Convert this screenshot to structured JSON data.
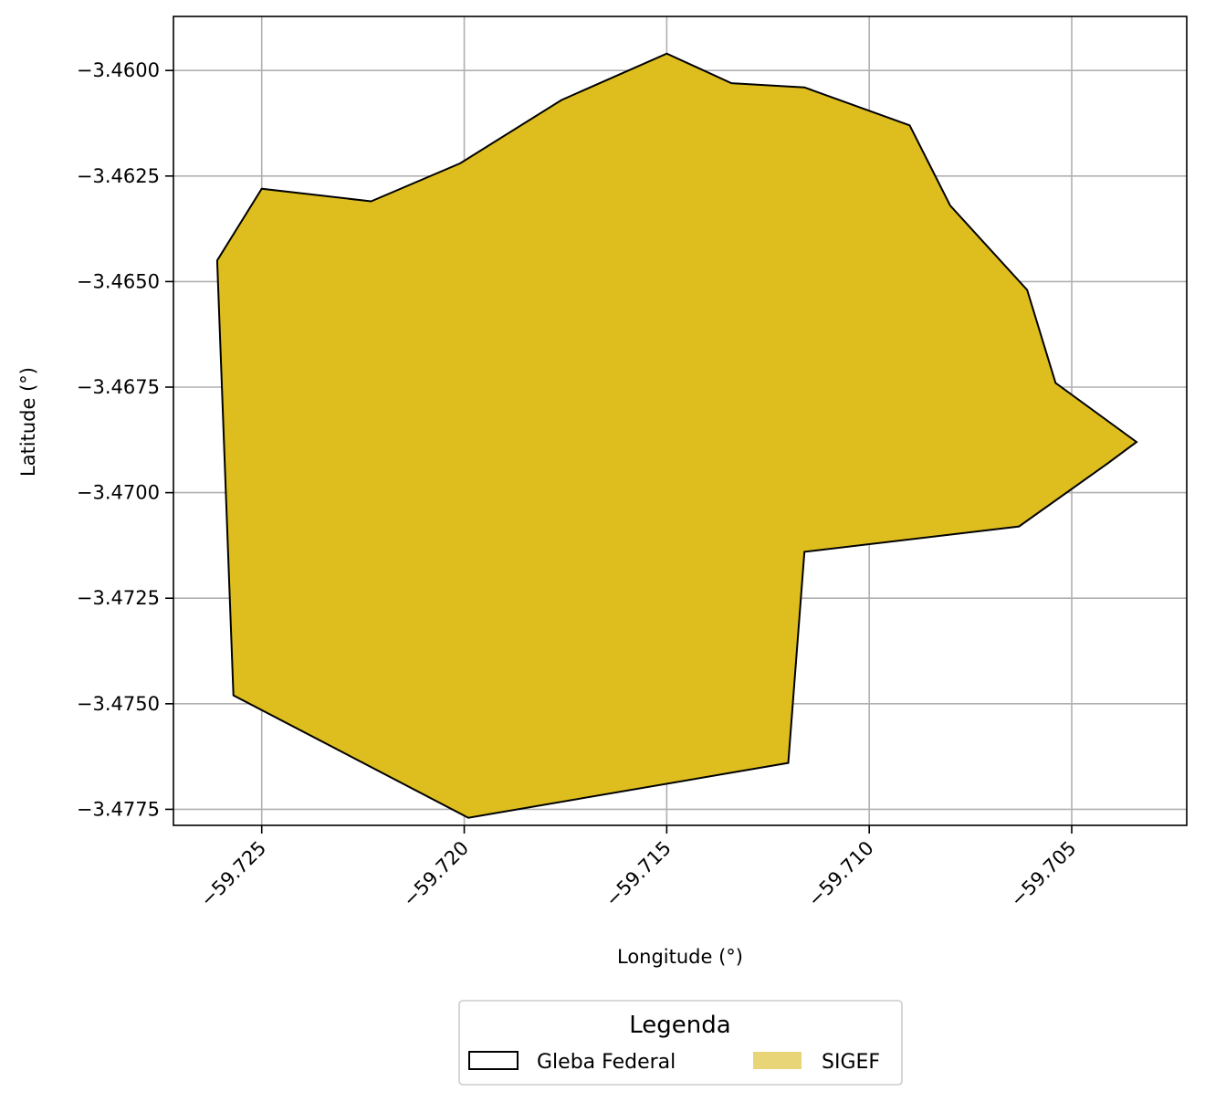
{
  "chart_data": {
    "type": "map",
    "xlabel": "Longitude (°)",
    "ylabel": "Latitude (°)",
    "xlim": [
      -59.72718,
      -59.70216
    ],
    "ylim": [
      -3.47788,
      -3.45872
    ],
    "grid": true,
    "xticks": [
      {
        "value": -59.725,
        "label": "−59.725"
      },
      {
        "value": -59.72,
        "label": "−59.720"
      },
      {
        "value": -59.715,
        "label": "−59.715"
      },
      {
        "value": -59.71,
        "label": "−59.710"
      },
      {
        "value": -59.705,
        "label": "−59.705"
      }
    ],
    "yticks": [
      {
        "value": -3.46,
        "label": "−3.4600"
      },
      {
        "value": -3.4625,
        "label": "−3.4625"
      },
      {
        "value": -3.465,
        "label": "−3.4650"
      },
      {
        "value": -3.4675,
        "label": "−3.4675"
      },
      {
        "value": -3.47,
        "label": "−3.4700"
      },
      {
        "value": -3.4725,
        "label": "−3.4725"
      },
      {
        "value": -3.475,
        "label": "−3.4750"
      },
      {
        "value": -3.4775,
        "label": "−3.4775"
      }
    ],
    "polygon": {
      "fill": "#DEBE1F",
      "edge": "#000000",
      "points": [
        [
          -59.7261,
          -3.4645
        ],
        [
          -59.725,
          -3.4628
        ],
        [
          -59.7223,
          -3.4631
        ],
        [
          -59.7201,
          -3.4622
        ],
        [
          -59.7176,
          -3.4607
        ],
        [
          -59.715,
          -3.4596
        ],
        [
          -59.7134,
          -3.4603
        ],
        [
          -59.7116,
          -3.4604
        ],
        [
          -59.709,
          -3.4613
        ],
        [
          -59.708,
          -3.4632
        ],
        [
          -59.7061,
          -3.4652
        ],
        [
          -59.7054,
          -3.4674
        ],
        [
          -59.7034,
          -3.4688
        ],
        [
          -59.7041,
          -3.4693
        ],
        [
          -59.7063,
          -3.4708
        ],
        [
          -59.7116,
          -3.4714
        ],
        [
          -59.712,
          -3.4764
        ],
        [
          -59.7199,
          -3.4777
        ],
        [
          -59.7257,
          -3.4748
        ]
      ]
    },
    "legend": {
      "title": "Legenda",
      "placement": "bottom-center",
      "items": [
        {
          "label": "Gleba Federal",
          "style": "outline",
          "color": "#000000"
        },
        {
          "label": "SIGEF",
          "style": "filled",
          "color": "#E8D578"
        }
      ]
    }
  }
}
